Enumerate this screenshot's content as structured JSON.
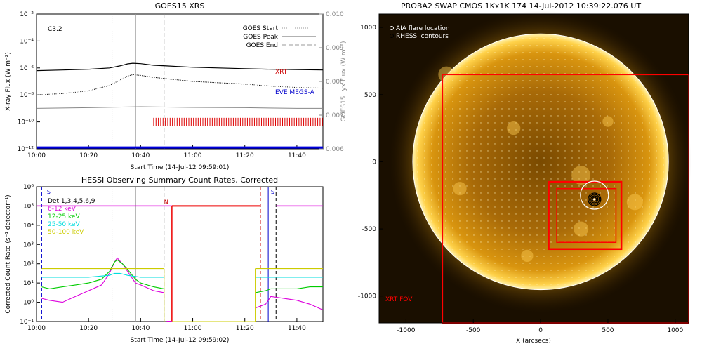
{
  "chart_data": [
    {
      "type": "line",
      "title": "GOES15 XRS",
      "xlabel": "Start Time (14-Jul-12 09:59:01)",
      "ylabel": "X-ray Flux (W m⁻²)",
      "ylabel_right": "GOES15 Lyx Flux (W m⁻²)",
      "x_ticks": [
        "10:00",
        "10:20",
        "10:40",
        "11:00",
        "11:20",
        "11:40"
      ],
      "xlim_min": [
        0,
        110
      ],
      "y_ticks": [
        "10⁻²",
        "10⁻⁴",
        "10⁻⁶",
        "10⁻⁸",
        "10⁻¹⁰",
        "10⁻¹²"
      ],
      "ylim_log10": [
        -12,
        -2
      ],
      "y_right_ticks": [
        "0.010",
        "0.009",
        "0.008",
        "0.007",
        "0.006"
      ],
      "ylim_right": [
        0.006,
        0.01
      ],
      "class_label": "C3.2",
      "legend": [
        {
          "label": "GOES Start",
          "style": "dotted"
        },
        {
          "label": "GOES Peak",
          "style": "solid"
        },
        {
          "label": "GOES End",
          "style": "dashed"
        }
      ],
      "annotations": [
        {
          "text": "XRT",
          "color": "#cc0000"
        },
        {
          "text": "EVE MEGS-A",
          "color": "#0000cc"
        }
      ],
      "vlines_min": {
        "start": 29,
        "peak": 38,
        "end": 49
      },
      "series": [
        {
          "name": "",
          "color": "#000000",
          "x": [
            0,
            10,
            20,
            28,
            32,
            35,
            37,
            40,
            45,
            50,
            60,
            70,
            80,
            90,
            100,
            110
          ],
          "y_log10": [
            -6.2,
            -6.15,
            -6.1,
            -6.0,
            -5.85,
            -5.7,
            -5.65,
            -5.68,
            -5.8,
            -5.85,
            -5.95,
            -6.0,
            -6.05,
            -6.1,
            -6.12,
            -6.15
          ]
        },
        {
          "name": "",
          "color": "#000000",
          "style": "dotted",
          "x": [
            0,
            10,
            20,
            28,
            32,
            35,
            37,
            40,
            45,
            50,
            60,
            70,
            80,
            90,
            100,
            110
          ],
          "y_log10": [
            -8.0,
            -7.9,
            -7.7,
            -7.3,
            -6.9,
            -6.6,
            -6.5,
            -6.55,
            -6.7,
            -6.8,
            -7.0,
            -7.1,
            -7.2,
            -7.35,
            -7.45,
            -7.5
          ]
        },
        {
          "name": "",
          "color": "#888888",
          "x": [
            0,
            20,
            40,
            60,
            80,
            100,
            110
          ],
          "y_right": [
            0.0072,
            0.00722,
            0.00725,
            0.00723,
            0.00722,
            0.0072,
            0.0072
          ]
        }
      ],
      "xrt_coverage_min": [
        45,
        110
      ],
      "eve_level_log10": -11.9
    },
    {
      "type": "line",
      "title": "HESSI Observing Summary Count Rates, Corrected",
      "xlabel": "Start Time (14-Jul-12 09:59:02)",
      "ylabel": "Corrected Count Rate (s⁻¹ detector⁻¹)",
      "x_ticks": [
        "10:00",
        "10:20",
        "10:40",
        "11:00",
        "11:20",
        "11:40"
      ],
      "xlim_min": [
        0,
        110
      ],
      "y_ticks": [
        "10⁶",
        "10⁵",
        "10⁴",
        "10³",
        "10²",
        "10¹",
        "10⁰",
        "10⁻¹"
      ],
      "ylim_log10": [
        -1,
        6
      ],
      "det_label": "Det 1,3,4,5,6,9",
      "flag_labels": [
        "S",
        "N",
        "S"
      ],
      "series": [
        {
          "name": "6-12 keV",
          "color": "#dd00dd",
          "x": [
            2,
            5,
            10,
            15,
            20,
            25,
            28,
            30,
            31,
            33,
            35,
            38,
            40,
            45,
            49,
            52,
            70,
            84,
            88,
            90,
            95,
            100,
            105,
            110
          ],
          "y_log10": [
            0.2,
            0.1,
            0.0,
            0.3,
            0.6,
            0.9,
            1.5,
            2.1,
            2.3,
            2.0,
            1.6,
            1.0,
            0.9,
            0.6,
            0.5,
            null,
            null,
            -0.3,
            -0.1,
            0.3,
            0.2,
            0.1,
            -0.1,
            -0.4
          ]
        },
        {
          "name": "12-25 keV",
          "color": "#00cc00",
          "x": [
            2,
            5,
            10,
            15,
            20,
            25,
            28,
            30,
            31,
            33,
            35,
            38,
            40,
            45,
            49,
            52,
            70,
            84,
            88,
            90,
            95,
            100,
            105,
            110
          ],
          "y_log10": [
            0.8,
            0.7,
            0.8,
            0.9,
            1.0,
            1.2,
            1.6,
            2.1,
            2.2,
            2.0,
            1.7,
            1.2,
            1.0,
            0.8,
            0.7,
            null,
            null,
            0.5,
            0.6,
            0.7,
            0.7,
            0.7,
            0.8,
            0.8
          ]
        },
        {
          "name": "25-50 keV",
          "color": "#00dddd",
          "x": [
            2,
            10,
            20,
            28,
            30,
            32,
            35,
            40,
            45,
            49,
            52,
            70,
            84,
            90,
            100,
            110
          ],
          "y_log10": [
            1.3,
            1.3,
            1.3,
            1.4,
            1.5,
            1.5,
            1.4,
            1.3,
            1.3,
            1.3,
            null,
            null,
            1.3,
            1.3,
            1.3,
            1.3
          ]
        },
        {
          "name": "50-100 keV",
          "color": "#cccc00",
          "x": [
            2,
            10,
            20,
            30,
            40,
            49,
            52,
            70,
            84,
            90,
            100,
            110
          ],
          "y_log10": [
            1.75,
            1.75,
            1.75,
            1.75,
            1.75,
            1.75,
            null,
            null,
            1.75,
            1.75,
            1.75,
            1.75
          ]
        }
      ],
      "flag_level_log10": 5
    },
    {
      "type": "image",
      "title": "PROBA2 SWAP CMOS 1Kx1K 174 14-Jul-2012 10:39:22.076 UT",
      "xlabel": "X (arcsecs)",
      "ylabel": "Y (arcsecs)",
      "x_ticks": [
        -1000,
        -500,
        0,
        500,
        1000
      ],
      "y_ticks": [
        1000,
        500,
        0,
        -500,
        -1000
      ],
      "xlim": [
        -1200,
        1100
      ],
      "ylim": [
        -1200,
        1100
      ],
      "legend": [
        "AIA flare location",
        "RHESSI contours"
      ],
      "fov_label": "XRT FOV",
      "fov_color": "#ff0000",
      "flare_xy": [
        400,
        -280
      ],
      "disk_radius": 950
    }
  ]
}
